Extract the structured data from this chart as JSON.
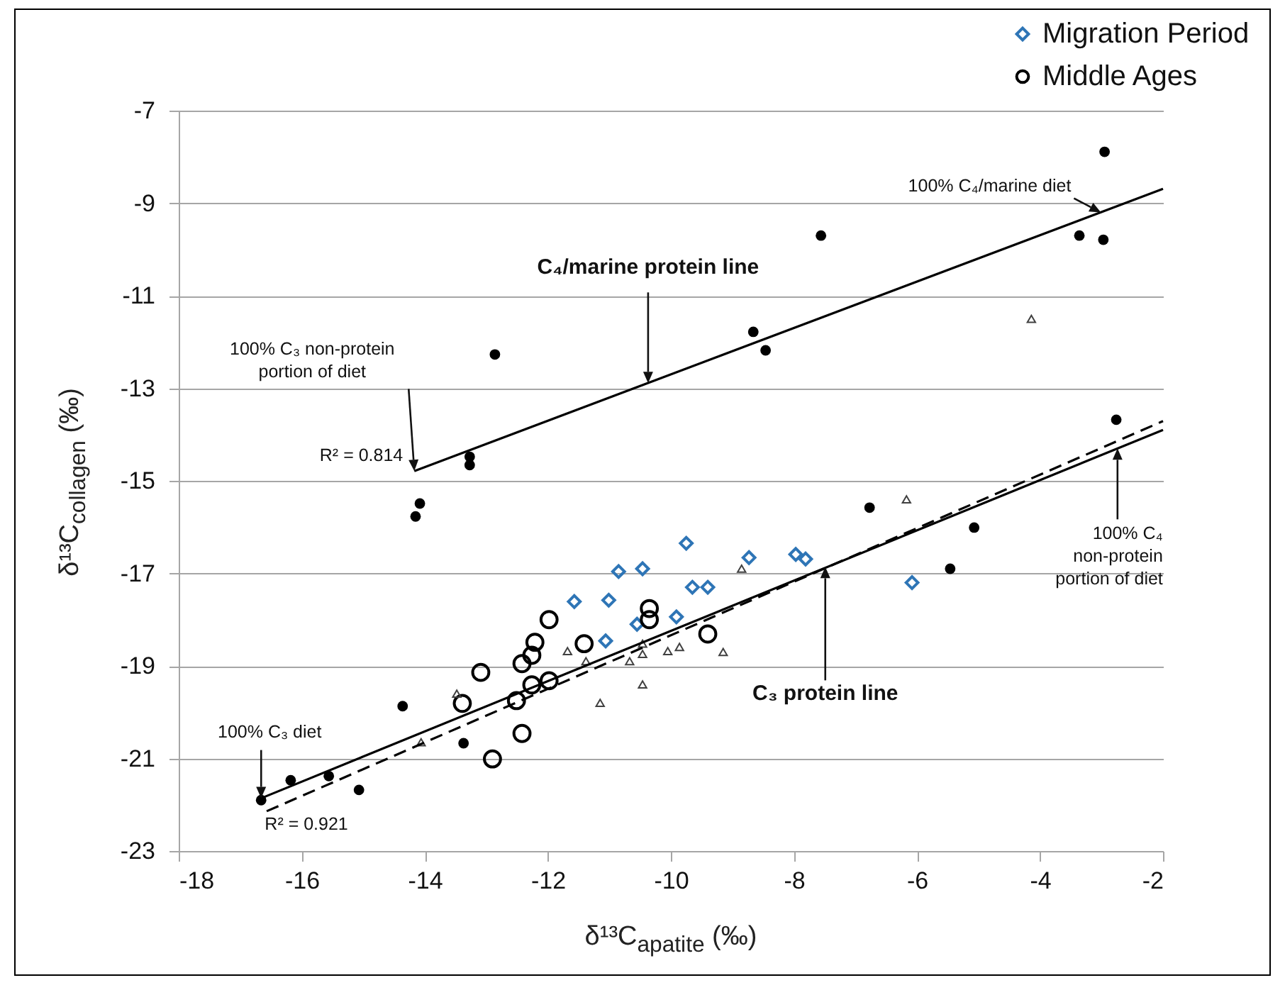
{
  "chart_data": {
    "type": "scatter",
    "xlabel": "δ¹³C$_{apatite}$ (‰)",
    "ylabel": "δ¹³C$_{collagen}$ (‰)",
    "xlim": [
      -18,
      -2
    ],
    "xticks": [
      -18,
      -16,
      -14,
      -12,
      -10,
      -8,
      -6,
      -4,
      -2
    ],
    "ylim": [
      -23,
      -7
    ],
    "yticks": [
      -23,
      -21,
      -19,
      -17,
      -15,
      -13,
      -11,
      -9,
      -7
    ],
    "grid": "y",
    "legend": "top right",
    "series": [
      {
        "name": "Migration Period",
        "color": "#2e75b6",
        "marker": "diamond",
        "x": [
          -11.57,
          -10.85,
          -10.46,
          -9.75,
          -8.73,
          -7.97,
          -7.81,
          -11.01,
          -9.65,
          -9.4,
          -9.91,
          -10.55,
          -11.06,
          -6.08
        ],
        "values": [
          -17.61,
          -16.96,
          -16.9,
          -16.35,
          -16.66,
          -16.59,
          -16.69,
          -17.58,
          -17.3,
          -17.3,
          -17.94,
          -18.1,
          -18.46,
          -17.2
        ]
      },
      {
        "name": "Middle Ages",
        "color": "#000000",
        "marker": "circle",
        "x": [
          -11.98,
          -12.21,
          -12.26,
          -12.42,
          -13.09,
          -11.41,
          -13.39,
          -12.51,
          -12.26,
          -11.98,
          -12.42,
          -12.9,
          -10.35,
          -10.35,
          -9.4
        ],
        "values": [
          -18.0,
          -18.49,
          -18.77,
          -18.95,
          -19.14,
          -18.52,
          -19.81,
          -19.75,
          -19.41,
          -19.32,
          -20.46,
          -21.01,
          -17.76,
          -18.0,
          -18.31
        ]
      },
      {
        "color": "#000000",
        "marker": "circle",
        "x": [
          -16.66,
          -16.18,
          -15.56,
          -15.07,
          -14.36,
          -14.15,
          -14.08,
          -13.27,
          -13.27,
          -13.37,
          -12.86,
          -8.66,
          -8.46,
          -7.56,
          -6.77,
          -5.07,
          -5.46,
          -3.36,
          -2.97,
          -2.95,
          -2.76
        ],
        "values": [
          -21.9,
          -21.47,
          -21.38,
          -21.68,
          -19.87,
          -15.77,
          -15.49,
          -14.48,
          -14.66,
          -20.67,
          -12.27,
          -11.78,
          -12.18,
          -9.7,
          -15.58,
          -16.01,
          -16.9,
          -9.7,
          -9.79,
          -7.89,
          -13.68
        ]
      },
      {
        "color": "#404040",
        "marker": "triangle",
        "x": [
          -13.48,
          -14.06,
          -11.68,
          -11.38,
          -10.67,
          -10.46,
          -10.46,
          -10.46,
          -11.15,
          -10.05,
          -9.86,
          -9.15,
          -8.85,
          -6.17,
          -4.14
        ],
        "values": [
          -19.6,
          -20.65,
          -18.68,
          -18.9,
          -18.9,
          -18.74,
          -18.52,
          -19.4,
          -19.8,
          -18.68,
          -18.59,
          -18.7,
          -16.9,
          -15.4,
          -11.5
        ]
      },
      {
        "type": "line",
        "color": "#000000",
        "line_style": "solid",
        "x": [
          -14.17,
          -2
        ],
        "values": [
          -14.79,
          -8.69
        ]
      },
      {
        "type": "line",
        "color": "#000000",
        "line_style": "solid",
        "x": [
          -16.66,
          -2
        ],
        "values": [
          -21.86,
          -13.9
        ]
      },
      {
        "type": "line",
        "color": "#000000",
        "line_style": "dashed",
        "x": [
          -16.57,
          -2
        ],
        "values": [
          -22.14,
          -13.71
        ]
      }
    ],
    "annotations": [
      {
        "text": "100% C₄/marine diet",
        "x": -3.01,
        "y": -9.2
      },
      {
        "text": "C₄/marine protein line",
        "x": -10.37,
        "y": -12.89
      },
      {
        "text": "100% C₃ non-protein\nportion of diet",
        "x": -14.17,
        "y": -14.79
      },
      {
        "text": "R² = 0.814",
        "x": -14.17,
        "y": -14.79
      },
      {
        "text": "100% C₃ diet",
        "x": -16.66,
        "y": -21.86
      },
      {
        "text": "R² = 0.921",
        "x": -16.57,
        "y": -22.14
      },
      {
        "text": "C₃ protein line",
        "x": -7.49,
        "y": -16.86
      },
      {
        "text": "100% C₄\nnon-protein\nportion of diet",
        "x": -2.74,
        "y": -14.3
      }
    ]
  }
}
